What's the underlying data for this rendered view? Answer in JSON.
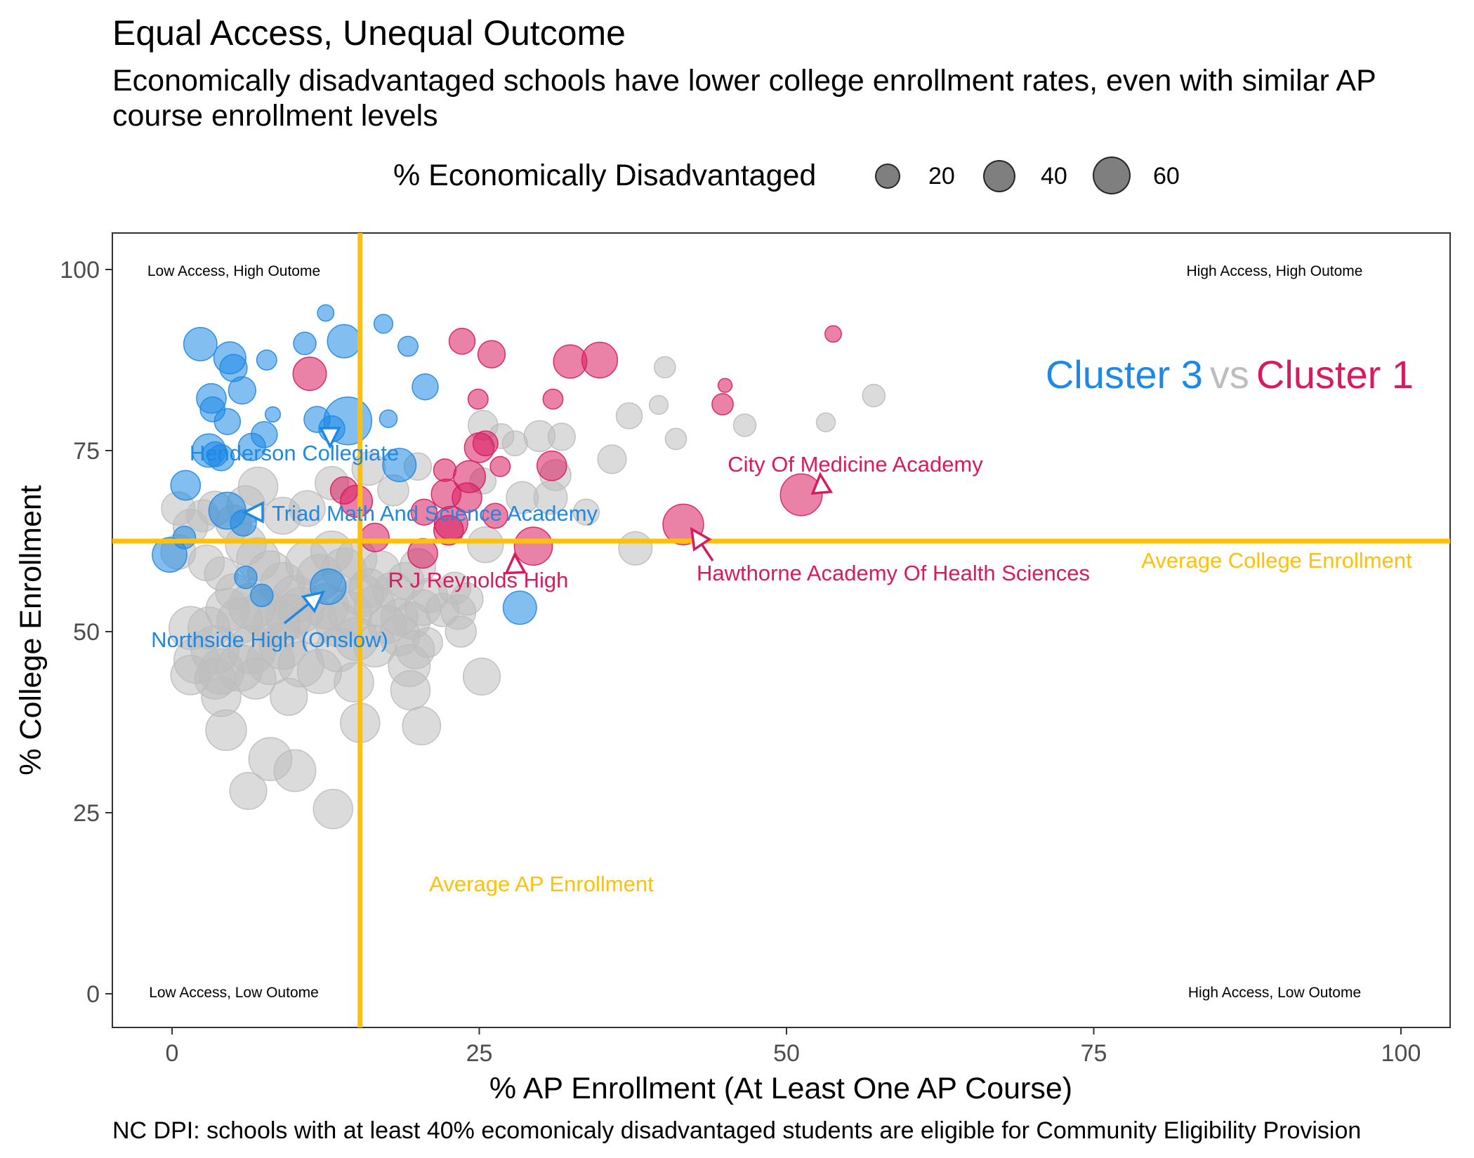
{
  "chart_data": {
    "type": "scatter",
    "title": "Equal Access, Unequal Outcome",
    "subtitle": "Economically disadvantaged schools have lower college enrollment rates, even with similar AP course enrollment levels",
    "xlabel": "% AP Enrollment (At Least One AP Course)",
    "ylabel": "% College Enrollment",
    "caption": "NC DPI: schools with at least 40% ecomonicaly disadvantaged students are eligible for Community Eligibility Provision",
    "xlim": [
      -5,
      105
    ],
    "ylim": [
      -5,
      105
    ],
    "x_ticks": [
      0,
      25,
      50,
      75,
      100
    ],
    "y_ticks": [
      0,
      25,
      50,
      75,
      100
    ],
    "grid": false,
    "legend": {
      "title": "% Economically Disadvantaged",
      "position": "top",
      "sizes": [
        20,
        40,
        60
      ]
    },
    "colors": {
      "cluster3": "#1E88E5",
      "cluster1": "#D81B60",
      "other": "#BDBDBD",
      "average": "#FFC107"
    },
    "cluster_title": {
      "left": "Cluster 3",
      "mid": "vs",
      "right": "Cluster 1"
    },
    "reference_lines": {
      "avg_ap": 15.3,
      "avg_ap_label": "Average AP Enrollment",
      "avg_college": 62.5,
      "avg_college_label": "Average College Enrollment"
    },
    "quadrant_labels": {
      "top_left": "Low Access, High Outome",
      "top_right": "High Access, High Outome",
      "bottom_left": "Low Access, Low Outome",
      "bottom_right": "High Access, Low Outome"
    },
    "annotations": [
      {
        "label": "Henderson Collegiate",
        "x": 13,
        "y": 77.5,
        "cluster": "cluster3"
      },
      {
        "label": "Triad Math And Science Academy",
        "x": 5.5,
        "y": 66.5,
        "cluster": "cluster3"
      },
      {
        "label": "Northside High (Onslow)",
        "x": 12.5,
        "y": 56.5,
        "cluster": "cluster3"
      },
      {
        "label": "City Of Medicine Academy",
        "x": 51,
        "y": 69,
        "cluster": "cluster1"
      },
      {
        "label": "R J Reynolds High",
        "x": 29.5,
        "y": 62,
        "cluster": "cluster1"
      },
      {
        "label": "Hawthorne Academy Of Health Sciences",
        "x": 41.5,
        "y": 65,
        "cluster": "cluster1"
      }
    ],
    "series": [
      {
        "cluster": "cluster3",
        "points": [
          [
            2.3,
            89.7,
            40
          ],
          [
            4.7,
            87.8,
            38
          ],
          [
            5.0,
            86.4,
            30
          ],
          [
            7.7,
            87.5,
            18
          ],
          [
            10.8,
            89.8,
            22
          ],
          [
            14.0,
            90.1,
            40
          ],
          [
            12.5,
            94.0,
            12
          ],
          [
            17.2,
            92.5,
            16
          ],
          [
            19.2,
            89.4,
            18
          ],
          [
            3.2,
            82.2,
            34
          ],
          [
            3.3,
            80.7,
            26
          ],
          [
            5.7,
            83.3,
            30
          ],
          [
            4.5,
            79.0,
            28
          ],
          [
            8.2,
            80.0,
            10
          ],
          [
            11.8,
            79.3,
            28
          ],
          [
            14.3,
            79.1,
            64
          ],
          [
            17.6,
            79.4,
            14
          ],
          [
            20.6,
            83.8,
            28
          ],
          [
            3.0,
            75.0,
            40
          ],
          [
            3.5,
            74.5,
            26
          ],
          [
            4.0,
            74.0,
            28
          ],
          [
            6.5,
            75.5,
            30
          ],
          [
            7.5,
            77.2,
            28
          ],
          [
            18.5,
            73.0,
            40
          ],
          [
            1.1,
            70.2,
            34
          ],
          [
            4.5,
            66.7,
            46
          ],
          [
            5.8,
            65.0,
            28
          ],
          [
            -0.2,
            60.6,
            42
          ],
          [
            1.0,
            63.0,
            22
          ],
          [
            12.7,
            56.2,
            44
          ],
          [
            28.3,
            53.3,
            40
          ],
          [
            7.3,
            55.0,
            22
          ],
          [
            6.0,
            57.5,
            22
          ],
          [
            13.0,
            78.0,
            28
          ]
        ]
      },
      {
        "cluster": "cluster1",
        "points": [
          [
            23.6,
            90.1,
            28
          ],
          [
            26.0,
            88.3,
            30
          ],
          [
            32.4,
            87.3,
            40
          ],
          [
            34.8,
            87.5,
            44
          ],
          [
            11.2,
            85.6,
            40
          ],
          [
            53.8,
            91.1,
            12
          ],
          [
            45.0,
            84.0,
            8
          ],
          [
            24.9,
            82.1,
            18
          ],
          [
            31.0,
            82.1,
            18
          ],
          [
            44.8,
            81.4,
            20
          ],
          [
            51.2,
            68.9,
            54
          ],
          [
            41.6,
            64.8,
            52
          ],
          [
            29.4,
            61.8,
            48
          ],
          [
            30.9,
            72.9,
            34
          ],
          [
            25.0,
            75.4,
            34
          ],
          [
            25.5,
            76.0,
            26
          ],
          [
            24.2,
            71.4,
            38
          ],
          [
            26.7,
            72.8,
            18
          ],
          [
            22.2,
            72.3,
            22
          ],
          [
            22.3,
            69.0,
            34
          ],
          [
            24.0,
            68.5,
            34
          ],
          [
            22.7,
            65.0,
            40
          ],
          [
            22.5,
            64.0,
            34
          ],
          [
            20.4,
            60.8,
            34
          ],
          [
            14.0,
            69.5,
            30
          ],
          [
            15.0,
            68.0,
            38
          ],
          [
            16.5,
            63.0,
            32
          ],
          [
            20.5,
            66.5,
            28
          ],
          [
            26.3,
            66.0,
            26
          ]
        ]
      },
      {
        "cluster": "other",
        "points": [
          [
            40.1,
            86.5,
            20
          ],
          [
            39.6,
            81.3,
            16
          ],
          [
            37.2,
            79.8,
            28
          ],
          [
            41.0,
            76.6,
            20
          ],
          [
            46.6,
            78.5,
            22
          ],
          [
            53.2,
            78.9,
            16
          ],
          [
            57.1,
            82.6,
            22
          ],
          [
            35.8,
            73.8,
            32
          ],
          [
            29.9,
            77.0,
            36
          ],
          [
            31.7,
            76.9,
            30
          ],
          [
            25.3,
            78.5,
            34
          ],
          [
            26.8,
            77.0,
            26
          ],
          [
            27.9,
            76.0,
            26
          ],
          [
            31.2,
            71.6,
            36
          ],
          [
            30.8,
            68.5,
            40
          ],
          [
            33.7,
            66.5,
            28
          ],
          [
            37.7,
            61.5,
            40
          ],
          [
            25.5,
            62.0,
            44
          ],
          [
            28.5,
            68.5,
            38
          ],
          [
            25.3,
            70.8,
            28
          ],
          [
            20.0,
            72.8,
            30
          ],
          [
            18.0,
            69.5,
            36
          ],
          [
            16.0,
            72.5,
            40
          ],
          [
            13.0,
            70.5,
            40
          ],
          [
            11.0,
            67.0,
            44
          ],
          [
            9.0,
            66.0,
            46
          ],
          [
            7.0,
            70.0,
            50
          ],
          [
            6.0,
            67.5,
            48
          ],
          [
            5.0,
            65.0,
            44
          ],
          [
            3.5,
            67.0,
            42
          ],
          [
            2.5,
            66.0,
            38
          ],
          [
            0.5,
            67.0,
            40
          ],
          [
            0.5,
            61.0,
            42
          ],
          [
            1.5,
            64.5,
            42
          ],
          [
            2.8,
            59.5,
            44
          ],
          [
            4.0,
            58.0,
            40
          ],
          [
            5.0,
            55.5,
            44
          ],
          [
            6.0,
            62.0,
            52
          ],
          [
            7.0,
            60.0,
            56
          ],
          [
            8.0,
            58.0,
            60
          ],
          [
            9.0,
            56.5,
            58
          ],
          [
            10.0,
            54.5,
            62
          ],
          [
            11.0,
            59.5,
            56
          ],
          [
            12.0,
            57.5,
            60
          ],
          [
            13.0,
            61.0,
            54
          ],
          [
            14.0,
            58.5,
            58
          ],
          [
            15.0,
            60.0,
            52
          ],
          [
            16.0,
            56.0,
            50
          ],
          [
            17.0,
            58.5,
            48
          ],
          [
            18.0,
            55.5,
            50
          ],
          [
            19.0,
            57.0,
            46
          ],
          [
            20.0,
            59.0,
            44
          ],
          [
            21.0,
            55.0,
            42
          ],
          [
            22.0,
            53.0,
            40
          ],
          [
            23.0,
            56.0,
            38
          ],
          [
            24.0,
            54.5,
            38
          ],
          [
            23.3,
            52.7,
            42
          ],
          [
            20.4,
            53.3,
            44
          ],
          [
            19.5,
            51.5,
            46
          ],
          [
            18.5,
            52.0,
            46
          ],
          [
            17.5,
            51.0,
            48
          ],
          [
            16.5,
            53.5,
            52
          ],
          [
            15.5,
            55.0,
            54
          ],
          [
            14.5,
            52.5,
            56
          ],
          [
            13.5,
            51.0,
            58
          ],
          [
            12.5,
            53.5,
            60
          ],
          [
            11.5,
            51.5,
            62
          ],
          [
            10.5,
            53.0,
            60
          ],
          [
            9.5,
            52.0,
            60
          ],
          [
            8.5,
            51.0,
            62
          ],
          [
            7.5,
            52.5,
            64
          ],
          [
            6.5,
            53.5,
            62
          ],
          [
            5.5,
            51.5,
            60
          ],
          [
            4.5,
            53.0,
            56
          ],
          [
            3.0,
            50.5,
            54
          ],
          [
            1.5,
            50.5,
            56
          ],
          [
            2.0,
            46.0,
            60
          ],
          [
            3.5,
            47.5,
            64
          ],
          [
            4.0,
            44.5,
            60
          ],
          [
            5.5,
            45.0,
            62
          ],
          [
            6.5,
            47.5,
            64
          ],
          [
            8.0,
            46.0,
            64
          ],
          [
            9.0,
            48.0,
            62
          ],
          [
            10.5,
            45.5,
            60
          ],
          [
            12.0,
            44.5,
            58
          ],
          [
            13.5,
            47.5,
            58
          ],
          [
            15.0,
            49.0,
            56
          ],
          [
            16.5,
            48.0,
            54
          ],
          [
            18.5,
            49.5,
            52
          ],
          [
            19.8,
            47.5,
            48
          ],
          [
            1.5,
            44.0,
            50
          ],
          [
            3.5,
            43.5,
            52
          ],
          [
            4.0,
            41.0,
            50
          ],
          [
            6.8,
            43.5,
            52
          ],
          [
            9.5,
            41.0,
            46
          ],
          [
            14.8,
            43.0,
            50
          ],
          [
            19.3,
            45.3,
            54
          ],
          [
            19.4,
            41.9,
            50
          ],
          [
            25.2,
            43.8,
            46
          ],
          [
            4.4,
            36.4,
            52
          ],
          [
            8.0,
            32.4,
            56
          ],
          [
            10.0,
            30.8,
            54
          ],
          [
            6.2,
            28.0,
            46
          ],
          [
            13.1,
            25.5,
            50
          ],
          [
            15.3,
            37.4,
            50
          ],
          [
            20.3,
            37.0,
            48
          ],
          [
            20.8,
            48.5,
            34
          ],
          [
            23.5,
            50.0,
            36
          ]
        ]
      }
    ]
  }
}
